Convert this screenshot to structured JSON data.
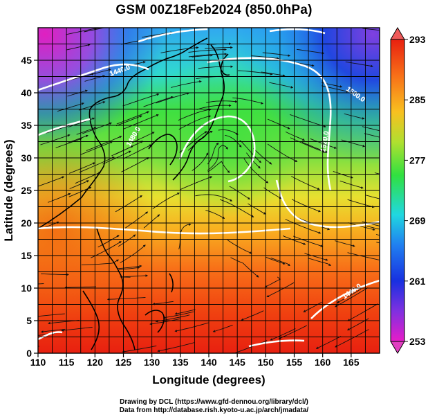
{
  "title": "GSM 00Z18Feb2024 (850.0hPa)",
  "axes": {
    "xlabel": "Longitude (degrees)",
    "ylabel": "Latitude  (degrees)",
    "x_ticks": [
      "110",
      "115",
      "120",
      "125",
      "130",
      "135",
      "140",
      "145",
      "150",
      "155",
      "160",
      "165"
    ],
    "y_ticks": [
      "0",
      "5",
      "10",
      "15",
      "20",
      "25",
      "30",
      "35",
      "40",
      "45"
    ]
  },
  "colorbar": {
    "ticks": [
      "253",
      "261",
      "269",
      "277",
      "285",
      "293"
    ],
    "min": 253,
    "max": 293
  },
  "contour_labels": [
    "1440.0",
    "1500.0",
    "1520.0",
    "1440.0",
    "1480.0"
  ],
  "credits": {
    "line1": "Drawing by DCL (https://www.gfd-dennou.org/library/dcl/)",
    "line2": "Data from http://database.rish.kyoto-u.ac.jp/arch/jmadata/"
  },
  "chart_data": {
    "type": "heatmap",
    "title": "GSM 00Z18Feb2024 (850.0hPa)",
    "xlabel": "Longitude (degrees)",
    "ylabel": "Latitude  (degrees)",
    "xlim": [
      110,
      170
    ],
    "ylim": [
      0,
      50
    ],
    "x_ticks": [
      110,
      115,
      120,
      125,
      130,
      135,
      140,
      145,
      150,
      155,
      160,
      165
    ],
    "y_ticks": [
      0,
      5,
      10,
      15,
      20,
      25,
      30,
      35,
      40,
      45
    ],
    "color_scale": {
      "min": 253,
      "max": 293,
      "ticks": [
        253,
        261,
        269,
        277,
        285,
        293
      ]
    },
    "grid": true,
    "colors": {
      "low": "#e020c0",
      "mid_low": "#2040e0",
      "mid": "#20e0c0",
      "mid_high": "#30e040",
      "high_mid": "#f0c020",
      "high": "#f02010"
    }
  }
}
